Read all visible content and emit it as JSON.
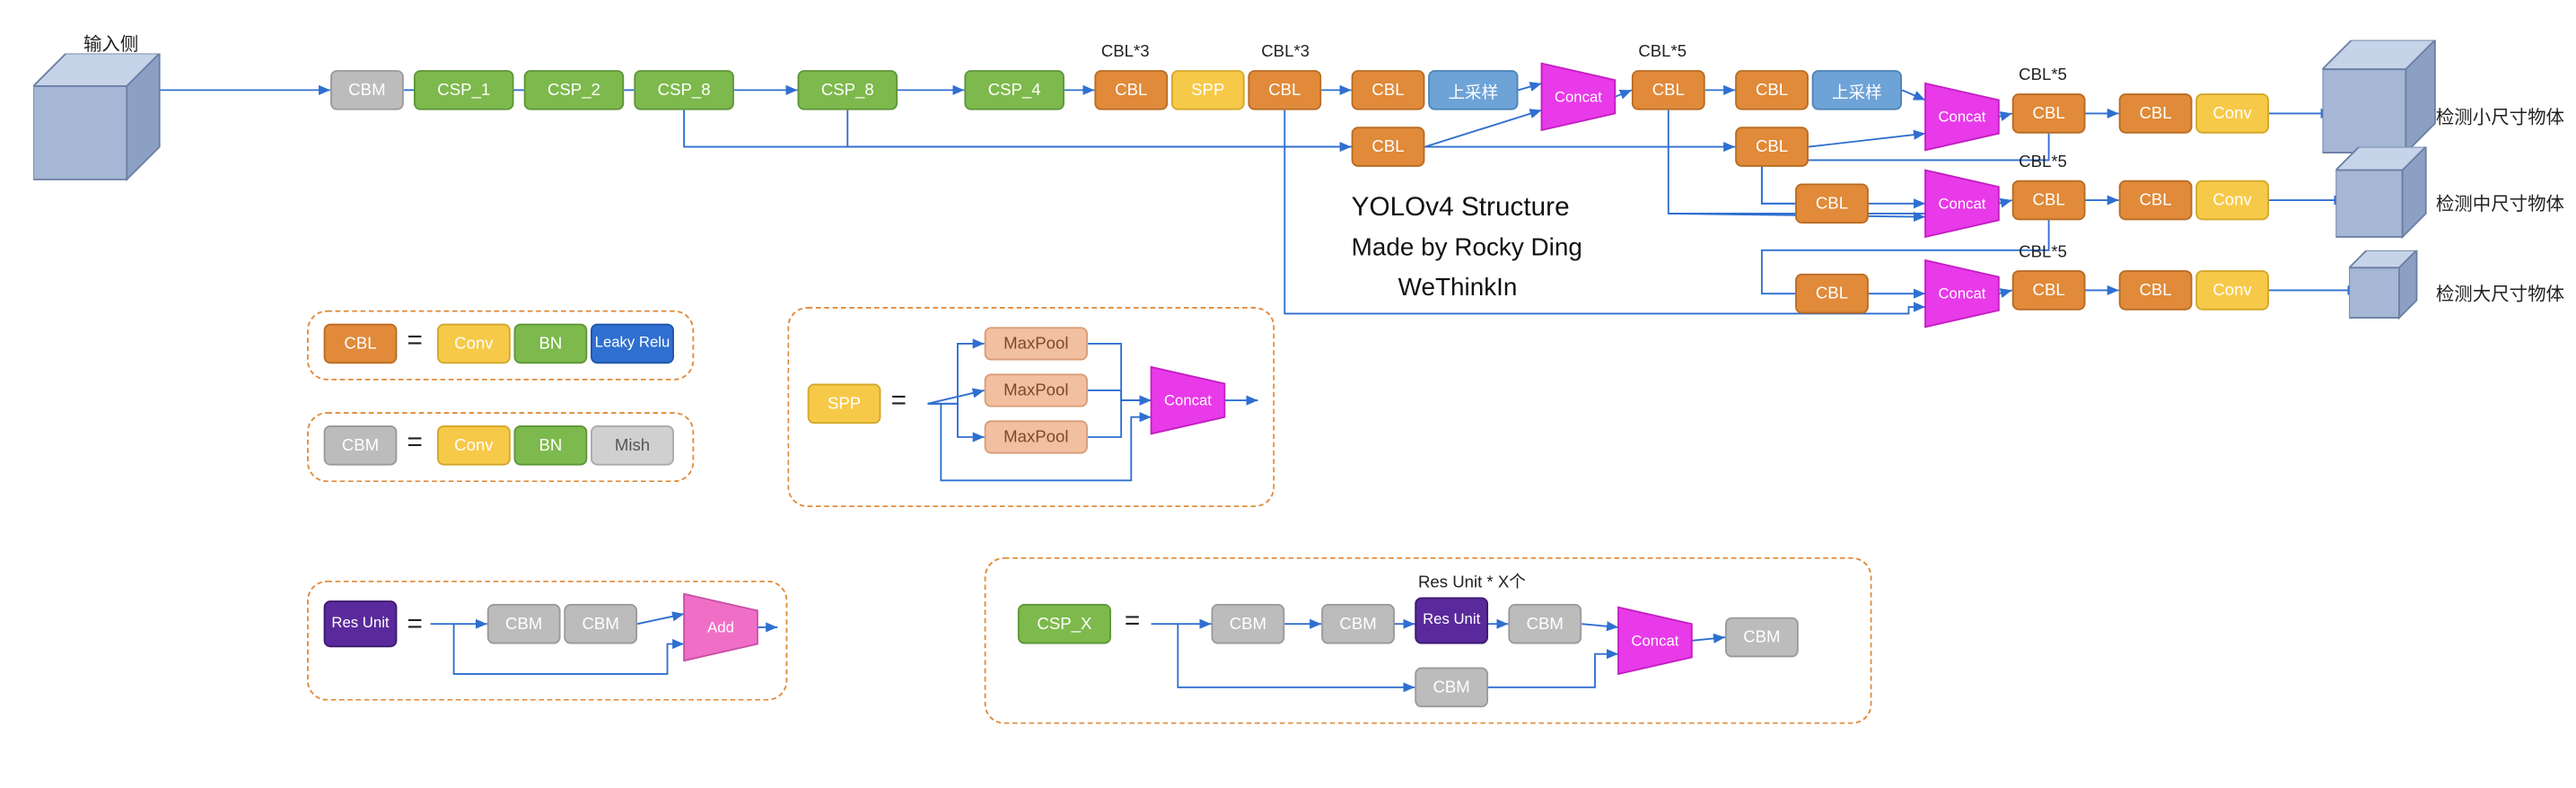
{
  "colors": {
    "cbm_gray": "#bcbcbc",
    "csp_green": "#7db94c",
    "csp_green_border": "#5e9638",
    "cbl_orange": "#e08a3a",
    "cbl_orange_border": "#b96c24",
    "spp_yellow": "#f7c948",
    "spp_yellow_border": "#d3a72c",
    "upsample_blue": "#6ea3d8",
    "upsample_blue_border": "#4c82b8",
    "concat_magenta": "#e83ae8",
    "concat_magenta_border": "#c21fc2",
    "conv_yellow": "#f7c948",
    "bn_green": "#7db94c",
    "leaky_blue": "#2f6fd0",
    "mish_gray": "#d0d0d0",
    "res_purple": "#5a2a9c",
    "add_pink": "#f06fc6",
    "maxpool": "#f2bfa1",
    "wire": "#2f6fd0",
    "cube_front": "#a6b7d6",
    "cube_side": "#8ca0c4",
    "cube_top": "#c7d3e8",
    "panel_border": "#e08a3a",
    "text": "#222222"
  },
  "input_label": "输入侧",
  "backbone": {
    "cbm": "CBM",
    "csp1": "CSP_1",
    "csp2": "CSP_2",
    "csp8a": "CSP_8",
    "csp8b": "CSP_8",
    "csp4": "CSP_4"
  },
  "neck": {
    "cbl": "CBL",
    "spp": "SPP",
    "upsample": "上采样",
    "concat": "Concat",
    "conv": "Conv",
    "cbl3_label": "CBL*3",
    "cbl5_label": "CBL*5"
  },
  "outputs": {
    "small": "检测小尺寸物体",
    "medium": "检测中尺寸物体",
    "large": "检测大尺寸物体"
  },
  "legend_cbl": {
    "name": "CBL",
    "conv": "Conv",
    "bn": "BN",
    "act": "Leaky\nRelu"
  },
  "legend_cbm": {
    "name": "CBM",
    "conv": "Conv",
    "bn": "BN",
    "act": "Mish"
  },
  "legend_spp": {
    "name": "SPP",
    "mp": "MaxPool",
    "concat": "Concat"
  },
  "legend_res": {
    "name": "Res\nUnit",
    "cbm": "CBM",
    "add": "Add"
  },
  "legend_csp": {
    "name": "CSP_X",
    "cbm": "CBM",
    "res": "Res\nUnit",
    "concat": "Concat",
    "note": "Res Unit * X个"
  },
  "credit": {
    "line1": "YOLOv4 Structure",
    "line2": "Made by Rocky Ding",
    "line3": "WeThinkIn"
  }
}
